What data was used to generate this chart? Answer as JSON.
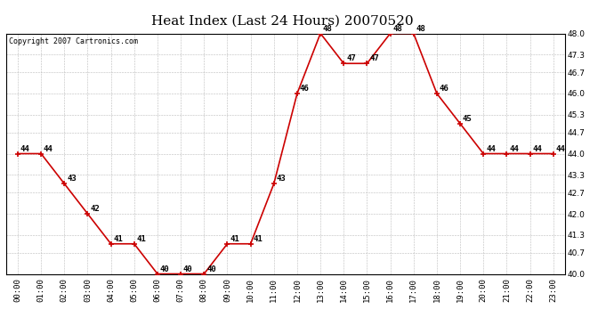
{
  "title": "Heat Index (Last 24 Hours) 20070520",
  "copyright": "Copyright 2007 Cartronics.com",
  "hours": [
    "00:00",
    "01:00",
    "02:00",
    "03:00",
    "04:00",
    "05:00",
    "06:00",
    "07:00",
    "08:00",
    "09:00",
    "10:00",
    "11:00",
    "12:00",
    "13:00",
    "14:00",
    "15:00",
    "16:00",
    "17:00",
    "18:00",
    "19:00",
    "20:00",
    "21:00",
    "22:00",
    "23:00"
  ],
  "values": [
    44,
    44,
    43,
    42,
    41,
    41,
    40,
    40,
    40,
    41,
    41,
    43,
    46,
    48,
    47,
    47,
    48,
    48,
    46,
    45,
    44,
    44,
    44,
    44
  ],
  "line_color": "#cc0000",
  "marker_color": "#cc0000",
  "bg_color": "#ffffff",
  "grid_color": "#bbbbbb",
  "ylim_min": 40.0,
  "ylim_max": 48.0,
  "yticks": [
    40.0,
    40.7,
    41.3,
    42.0,
    42.7,
    43.3,
    44.0,
    44.7,
    45.3,
    46.0,
    46.7,
    47.3,
    48.0
  ],
  "title_fontsize": 11,
  "label_fontsize": 6.5,
  "annotation_fontsize": 6.5,
  "copyright_fontsize": 6
}
